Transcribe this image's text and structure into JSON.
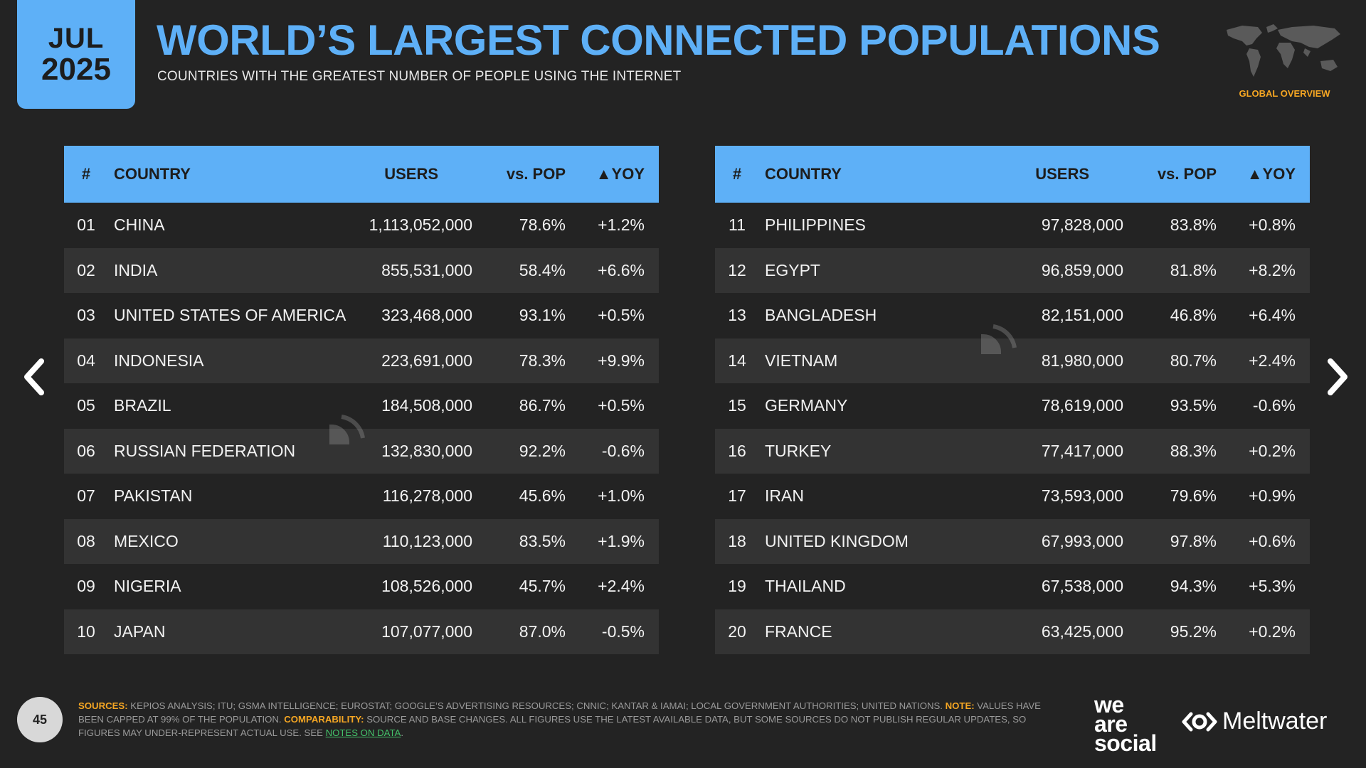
{
  "header": {
    "month": "JUL",
    "year": "2025",
    "title": "WORLD’S LARGEST CONNECTED POPULATIONS",
    "subtitle": "COUNTRIES WITH THE GREATEST NUMBER OF PEOPLE USING THE INTERNET",
    "section_tag": "GLOBAL OVERVIEW"
  },
  "colors": {
    "accent": "#5eb0f7",
    "background": "#232323",
    "highlight": "#f5a623",
    "link": "#44c26a"
  },
  "table_headers": {
    "num": "#",
    "country": "COUNTRY",
    "users": "USERS",
    "pop": "vs. POP",
    "yoy": "▲YOY"
  },
  "left_rows": [
    {
      "num": "01",
      "country": "CHINA",
      "users": "1,113,052,000",
      "pop": "78.6%",
      "yoy": "+1.2%"
    },
    {
      "num": "02",
      "country": "INDIA",
      "users": "855,531,000",
      "pop": "58.4%",
      "yoy": "+6.6%"
    },
    {
      "num": "03",
      "country": "UNITED STATES OF AMERICA",
      "users": "323,468,000",
      "pop": "93.1%",
      "yoy": "+0.5%"
    },
    {
      "num": "04",
      "country": "INDONESIA",
      "users": "223,691,000",
      "pop": "78.3%",
      "yoy": "+9.9%"
    },
    {
      "num": "05",
      "country": "BRAZIL",
      "users": "184,508,000",
      "pop": "86.7%",
      "yoy": "+0.5%"
    },
    {
      "num": "06",
      "country": "RUSSIAN FEDERATION",
      "users": "132,830,000",
      "pop": "92.2%",
      "yoy": "-0.6%"
    },
    {
      "num": "07",
      "country": "PAKISTAN",
      "users": "116,278,000",
      "pop": "45.6%",
      "yoy": "+1.0%"
    },
    {
      "num": "08",
      "country": "MEXICO",
      "users": "110,123,000",
      "pop": "83.5%",
      "yoy": "+1.9%"
    },
    {
      "num": "09",
      "country": "NIGERIA",
      "users": "108,526,000",
      "pop": "45.7%",
      "yoy": "+2.4%"
    },
    {
      "num": "10",
      "country": "JAPAN",
      "users": "107,077,000",
      "pop": "87.0%",
      "yoy": "-0.5%"
    }
  ],
  "right_rows": [
    {
      "num": "11",
      "country": "PHILIPPINES",
      "users": "97,828,000",
      "pop": "83.8%",
      "yoy": "+0.8%"
    },
    {
      "num": "12",
      "country": "EGYPT",
      "users": "96,859,000",
      "pop": "81.8%",
      "yoy": "+8.2%"
    },
    {
      "num": "13",
      "country": "BANGLADESH",
      "users": "82,151,000",
      "pop": "46.8%",
      "yoy": "+6.4%"
    },
    {
      "num": "14",
      "country": "VIETNAM",
      "users": "81,980,000",
      "pop": "80.7%",
      "yoy": "+2.4%"
    },
    {
      "num": "15",
      "country": "GERMANY",
      "users": "78,619,000",
      "pop": "93.5%",
      "yoy": "-0.6%"
    },
    {
      "num": "16",
      "country": "TURKEY",
      "users": "77,417,000",
      "pop": "88.3%",
      "yoy": "+0.2%"
    },
    {
      "num": "17",
      "country": "IRAN",
      "users": "73,593,000",
      "pop": "79.6%",
      "yoy": "+0.9%"
    },
    {
      "num": "18",
      "country": "UNITED KINGDOM",
      "users": "67,993,000",
      "pop": "97.8%",
      "yoy": "+0.6%"
    },
    {
      "num": "19",
      "country": "THAILAND",
      "users": "67,538,000",
      "pop": "94.3%",
      "yoy": "+5.3%"
    },
    {
      "num": "20",
      "country": "FRANCE",
      "users": "63,425,000",
      "pop": "95.2%",
      "yoy": "+0.2%"
    }
  ],
  "footer": {
    "page_number": "45",
    "sources_label": "SOURCES:",
    "sources_text": " KEPIOS ANALYSIS; ITU; GSMA INTELLIGENCE; EUROSTAT; GOOGLE’S ADVERTISING RESOURCES; CNNIC; KANTAR & IAMAI; LOCAL GOVERNMENT AUTHORITIES; UNITED NATIONS. ",
    "note_label": "NOTE:",
    "note_text": " VALUES HAVE BEEN CAPPED AT 99% OF THE POPULATION. ",
    "comparability_label": "COMPARABILITY:",
    "comparability_text": " SOURCE AND BASE CHANGES. ALL FIGURES USE THE LATEST AVAILABLE DATA, BUT SOME SOURCES DO NOT PUBLISH REGULAR UPDATES, SO FIGURES MAY UNDER-REPRESENT ACTUAL USE. SEE ",
    "notes_link": "NOTES ON DATA",
    "notes_end": ".",
    "brand_we": "we",
    "brand_are": "are",
    "brand_social": "social",
    "brand_meltwater": "Meltwater"
  },
  "icons": {
    "prev": "chevron-left-icon",
    "next": "chevron-right-icon",
    "globe": "world-map-icon"
  }
}
